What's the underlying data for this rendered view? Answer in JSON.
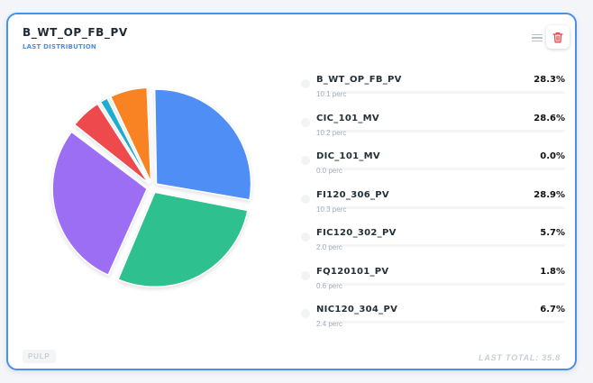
{
  "card": {
    "title": "B_WT_OP_FB_PV",
    "subtitle": "LAST DISTRIBUTION",
    "menu_icon": "hamburger-icon",
    "delete_icon": "trash-icon",
    "delete_color": "#e5484d",
    "tag": "PULP",
    "total_label": "LAST TOTAL: 35.8"
  },
  "chart_data": {
    "type": "pie",
    "labels": [
      "B_WT_OP_FB_PV",
      "CIC_101_MV",
      "DIC_101_MV",
      "FI120_306_PV",
      "FIC120_302_PV",
      "FQ120101_PV",
      "NIC120_304_PV"
    ],
    "values": [
      10.1,
      10.2,
      0.0,
      10.3,
      2.0,
      0.6,
      2.4
    ],
    "percents": [
      28.3,
      28.6,
      0.0,
      28.9,
      5.7,
      1.8,
      6.7
    ],
    "colors": [
      "#4f8ef5",
      "#2ec08e",
      "#8ac8f0",
      "#9b6ef3",
      "#ee4a4e",
      "#1aaed0",
      "#f98321"
    ],
    "total": 35.8
  },
  "legend": [
    {
      "name": "B_WT_OP_FB_PV",
      "pct": "28.3%",
      "sub": "10.1 perc"
    },
    {
      "name": "CIC_101_MV",
      "pct": "28.6%",
      "sub": "10.2 perc"
    },
    {
      "name": "DIC_101_MV",
      "pct": "0.0%",
      "sub": "0.0 perc"
    },
    {
      "name": "FI120_306_PV",
      "pct": "28.9%",
      "sub": "10.3 perc"
    },
    {
      "name": "FIC120_302_PV",
      "pct": "5.7%",
      "sub": "2.0 perc"
    },
    {
      "name": "FQ120101_PV",
      "pct": "1.8%",
      "sub": "0.6 perc"
    },
    {
      "name": "NIC120_304_PV",
      "pct": "6.7%",
      "sub": "2.4 perc"
    }
  ]
}
